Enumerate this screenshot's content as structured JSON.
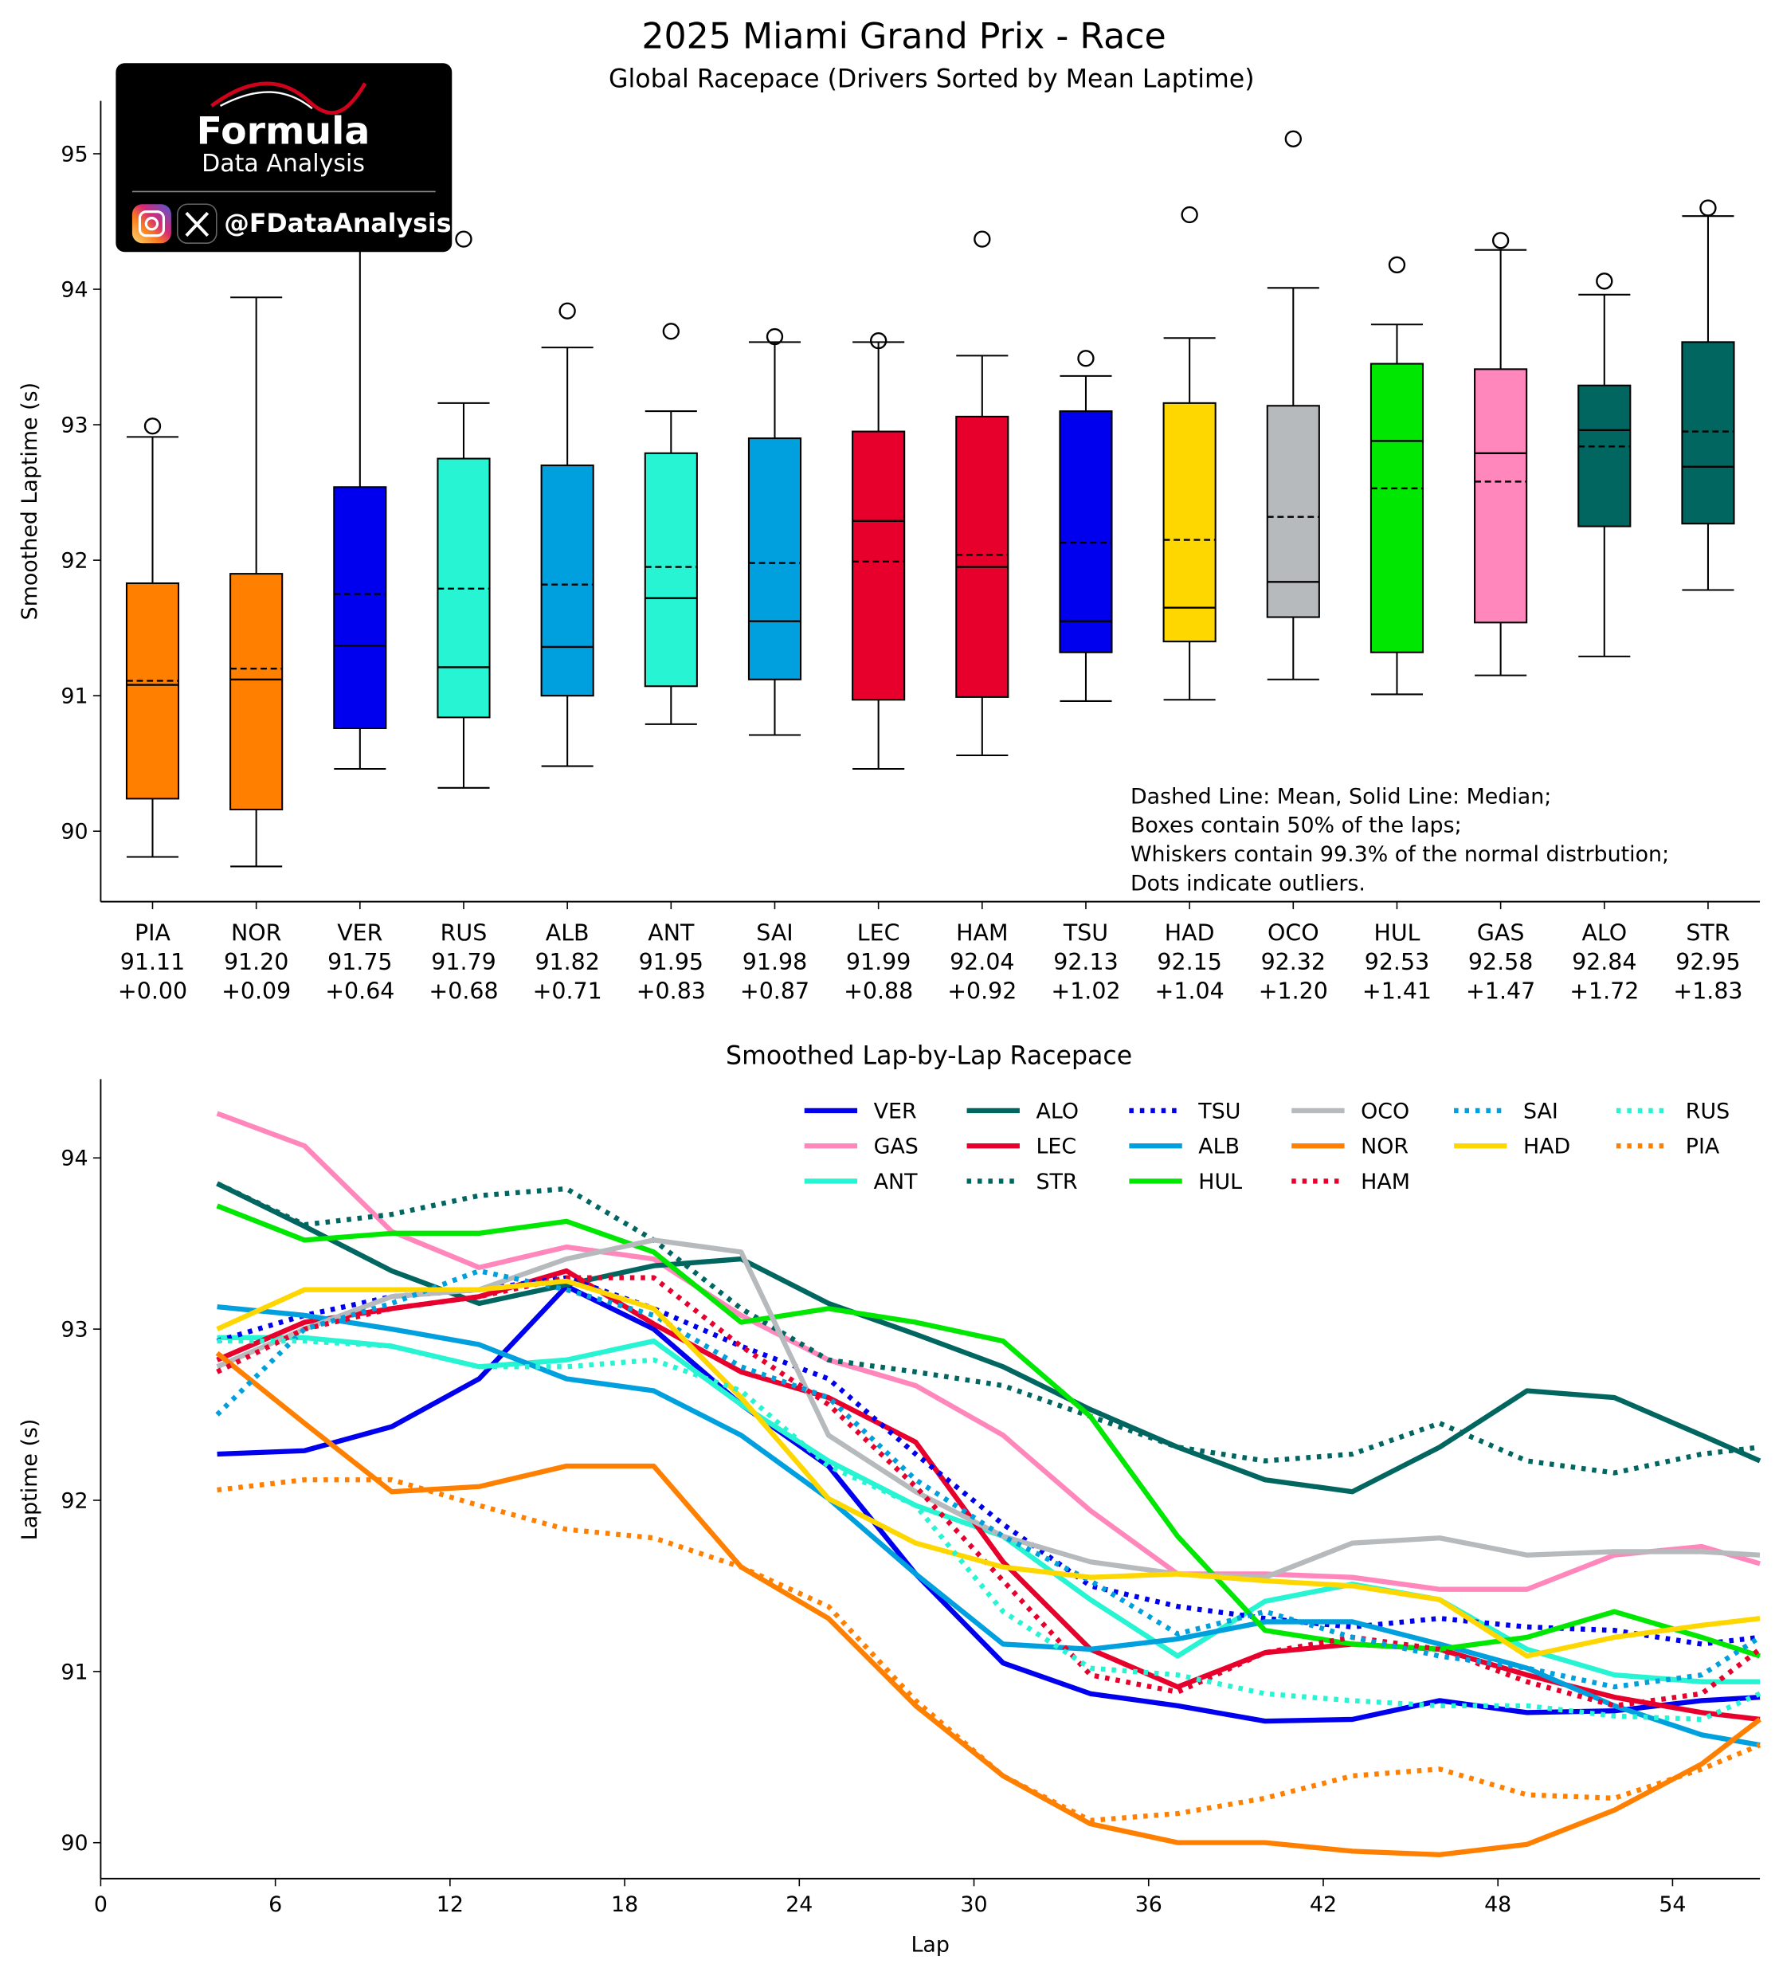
{
  "chart_data": [
    {
      "type": "box",
      "title": "2025 Miami Grand Prix - Race",
      "subtitle": "Global Racepace (Drivers Sorted by Mean Laptime)",
      "ylabel": "Smoothed Laptime (s)",
      "categories": [
        "PIA",
        "NOR",
        "VER",
        "RUS",
        "ALB",
        "ANT",
        "SAI",
        "LEC",
        "HAM",
        "TSU",
        "HAD",
        "OCO",
        "HUL",
        "GAS",
        "ALO",
        "STR"
      ],
      "mean_labels": [
        "91.11",
        "91.20",
        "91.75",
        "91.79",
        "91.82",
        "91.95",
        "91.98",
        "91.99",
        "92.04",
        "92.13",
        "92.15",
        "92.32",
        "92.53",
        "92.58",
        "92.84",
        "92.95"
      ],
      "gap_labels": [
        "+0.00",
        "+0.09",
        "+0.64",
        "+0.68",
        "+0.71",
        "+0.83",
        "+0.87",
        "+0.88",
        "+0.92",
        "+1.02",
        "+1.04",
        "+1.20",
        "+1.41",
        "+1.47",
        "+1.72",
        "+1.83"
      ],
      "mean": [
        91.11,
        91.2,
        91.75,
        91.79,
        91.82,
        91.95,
        91.98,
        91.99,
        92.04,
        92.13,
        92.15,
        92.32,
        92.53,
        92.58,
        92.84,
        92.95
      ],
      "whisker_low": [
        89.81,
        89.74,
        90.46,
        90.32,
        90.48,
        90.79,
        90.71,
        90.46,
        90.56,
        90.96,
        90.97,
        91.12,
        91.01,
        91.15,
        91.29,
        91.78
      ],
      "q1": [
        90.24,
        90.16,
        90.76,
        90.84,
        91.0,
        91.07,
        91.12,
        90.97,
        90.99,
        91.32,
        91.4,
        91.58,
        91.32,
        91.54,
        92.25,
        92.27
      ],
      "median": [
        91.08,
        91.12,
        91.37,
        91.21,
        91.36,
        91.72,
        91.55,
        92.29,
        91.95,
        91.55,
        91.65,
        91.84,
        92.88,
        92.79,
        92.96,
        92.69
      ],
      "q3": [
        91.83,
        91.9,
        92.54,
        92.75,
        92.7,
        92.79,
        92.9,
        92.95,
        93.06,
        93.1,
        93.16,
        93.14,
        93.45,
        93.41,
        93.29,
        93.61
      ],
      "whisker_high": [
        92.91,
        93.94,
        94.4,
        93.16,
        93.57,
        93.1,
        93.61,
        93.61,
        93.51,
        93.36,
        93.64,
        94.01,
        93.74,
        94.29,
        93.96,
        94.54
      ],
      "outliers": [
        [
          92.99
        ],
        [],
        [],
        [
          94.37
        ],
        [
          93.84
        ],
        [
          93.69
        ],
        [
          93.65
        ],
        [
          93.62
        ],
        [
          94.37
        ],
        [
          93.49
        ],
        [
          94.55
        ],
        [
          95.11
        ],
        [
          94.18
        ],
        [
          94.36
        ],
        [
          94.06
        ],
        [
          94.6
        ]
      ],
      "colors": [
        "#ff8000",
        "#ff8000",
        "#0000ee",
        "#27f4d2",
        "#00a0de",
        "#27f4d2",
        "#00a0de",
        "#e8002d",
        "#e8002d",
        "#0000ee",
        "#ffd700",
        "#b6babd",
        "#00e701",
        "#ff87bc",
        "#00665f",
        "#00665f"
      ],
      "ylim": [
        89.48,
        95.39
      ],
      "yticks": [
        90,
        91,
        92,
        93,
        94,
        95
      ],
      "annotation": [
        "Dashed Line: Mean, Solid Line: Median;",
        "Boxes contain 50% of the laps;",
        "Whiskers contain 99.3% of the normal distrbution;",
        "Dots indicate outliers."
      ]
    },
    {
      "type": "line",
      "title": "Smoothed Lap-by-Lap Racepace",
      "xlabel": "Lap",
      "ylabel": "Laptime (s)",
      "legend": "upper right",
      "x": [
        4,
        7,
        10,
        13,
        16,
        19,
        22,
        25,
        28,
        31,
        34,
        37,
        40,
        43,
        46,
        49,
        52,
        55,
        57
      ],
      "xlim": [
        0,
        57
      ],
      "xticks": [
        0,
        6,
        12,
        18,
        24,
        30,
        36,
        42,
        48,
        54
      ],
      "ylim": [
        89.79,
        94.46
      ],
      "yticks": [
        90,
        91,
        92,
        93,
        94
      ],
      "series": [
        {
          "name": "VER",
          "color": "#0000ee",
          "linestyle": "solid",
          "values": [
            92.27,
            92.29,
            92.43,
            92.71,
            93.25,
            93.0,
            92.56,
            92.2,
            91.57,
            91.05,
            90.87,
            90.8,
            90.71,
            90.72,
            90.83,
            90.76,
            90.77,
            90.83,
            90.85
          ]
        },
        {
          "name": "GAS",
          "color": "#ff87bc",
          "linestyle": "solid",
          "values": [
            94.26,
            94.07,
            93.57,
            93.36,
            93.48,
            93.41,
            93.08,
            92.82,
            92.67,
            92.38,
            91.94,
            91.57,
            91.57,
            91.55,
            91.48,
            91.48,
            91.68,
            91.73,
            91.63
          ]
        },
        {
          "name": "ANT",
          "color": "#27f4d2",
          "linestyle": "solid",
          "values": [
            92.95,
            92.95,
            92.9,
            92.78,
            92.82,
            92.93,
            92.56,
            92.23,
            91.97,
            91.79,
            91.42,
            91.09,
            91.41,
            91.51,
            91.42,
            91.13,
            90.98,
            90.94,
            90.94
          ]
        },
        {
          "name": "ALO",
          "color": "#00665f",
          "linestyle": "solid",
          "values": [
            93.85,
            93.6,
            93.34,
            93.15,
            93.26,
            93.37,
            93.41,
            93.15,
            92.97,
            92.78,
            92.53,
            92.31,
            92.12,
            92.05,
            92.31,
            92.64,
            92.6,
            92.38,
            92.23
          ]
        },
        {
          "name": "LEC",
          "color": "#e8002d",
          "linestyle": "solid",
          "values": [
            92.82,
            93.04,
            93.12,
            93.19,
            93.34,
            93.03,
            92.75,
            92.6,
            92.34,
            91.64,
            91.13,
            90.91,
            91.11,
            91.16,
            91.13,
            90.98,
            90.85,
            90.76,
            90.72
          ]
        },
        {
          "name": "STR",
          "color": "#00665f",
          "linestyle": "dotted",
          "values": [
            93.85,
            93.61,
            93.67,
            93.78,
            93.82,
            93.52,
            93.12,
            92.82,
            92.75,
            92.67,
            92.49,
            92.31,
            92.23,
            92.27,
            92.45,
            92.23,
            92.16,
            92.27,
            92.31
          ]
        },
        {
          "name": "TSU",
          "color": "#0000ee",
          "linestyle": "dotted",
          "values": [
            92.93,
            93.08,
            93.19,
            93.23,
            93.3,
            93.12,
            92.9,
            92.71,
            92.27,
            91.86,
            91.5,
            91.38,
            91.31,
            91.26,
            91.31,
            91.26,
            91.24,
            91.16,
            91.2
          ]
        },
        {
          "name": "ALB",
          "color": "#00a0de",
          "linestyle": "solid",
          "values": [
            93.13,
            93.08,
            93.0,
            92.91,
            92.71,
            92.64,
            92.38,
            92.01,
            91.57,
            91.16,
            91.13,
            91.19,
            91.29,
            91.29,
            91.16,
            91.02,
            90.8,
            90.63,
            90.57
          ]
        },
        {
          "name": "HUL",
          "color": "#00e701",
          "linestyle": "solid",
          "values": [
            93.72,
            93.52,
            93.56,
            93.56,
            93.63,
            93.45,
            93.04,
            93.12,
            93.04,
            92.93,
            92.49,
            91.79,
            91.24,
            91.16,
            91.13,
            91.2,
            91.35,
            91.2,
            91.09
          ]
        },
        {
          "name": "OCO",
          "color": "#b6babd",
          "linestyle": "solid",
          "values": [
            92.78,
            93.0,
            93.19,
            93.23,
            93.41,
            93.52,
            93.45,
            92.38,
            92.05,
            91.79,
            91.64,
            91.57,
            91.55,
            91.75,
            91.78,
            91.68,
            91.7,
            91.7,
            91.68
          ]
        },
        {
          "name": "NOR",
          "color": "#ff8000",
          "linestyle": "solid",
          "values": [
            92.86,
            92.45,
            92.05,
            92.08,
            92.2,
            92.2,
            91.61,
            91.31,
            90.8,
            90.39,
            90.11,
            90.0,
            90.0,
            89.95,
            89.93,
            89.99,
            90.19,
            90.46,
            90.72
          ]
        },
        {
          "name": "HAM",
          "color": "#e8002d",
          "linestyle": "dotted",
          "values": [
            92.75,
            93.0,
            93.12,
            93.19,
            93.3,
            93.3,
            92.9,
            92.56,
            92.08,
            91.53,
            90.98,
            90.88,
            91.11,
            91.2,
            91.13,
            90.94,
            90.8,
            90.87,
            91.13
          ]
        },
        {
          "name": "SAI",
          "color": "#00a0de",
          "linestyle": "dotted",
          "values": [
            92.5,
            93.0,
            93.15,
            93.34,
            93.23,
            93.08,
            92.78,
            92.6,
            92.12,
            91.79,
            91.53,
            91.22,
            91.35,
            91.2,
            91.09,
            91.02,
            90.91,
            90.98,
            91.2
          ]
        },
        {
          "name": "HAD",
          "color": "#ffd700",
          "linestyle": "solid",
          "values": [
            93.0,
            93.23,
            93.23,
            93.23,
            93.28,
            93.12,
            92.6,
            92.01,
            91.75,
            91.61,
            91.55,
            91.57,
            91.53,
            91.5,
            91.42,
            91.09,
            91.2,
            91.27,
            91.31
          ]
        },
        {
          "name": "RUS",
          "color": "#27f4d2",
          "linestyle": "dotted",
          "values": [
            92.93,
            92.93,
            92.9,
            92.78,
            92.78,
            92.82,
            92.64,
            92.2,
            91.97,
            91.35,
            91.02,
            90.98,
            90.87,
            90.83,
            90.8,
            90.8,
            90.74,
            90.72,
            90.87
          ]
        },
        {
          "name": "PIA",
          "color": "#ff8000",
          "linestyle": "dotted",
          "values": [
            92.06,
            92.12,
            92.12,
            91.97,
            91.83,
            91.78,
            91.61,
            91.38,
            90.83,
            90.39,
            90.13,
            90.17,
            90.26,
            90.39,
            90.43,
            90.28,
            90.26,
            90.43,
            90.57
          ]
        }
      ]
    }
  ],
  "logo": {
    "brand": "Formula",
    "tagline": "Data Analysis",
    "handle": "@FDataAnalysis"
  }
}
